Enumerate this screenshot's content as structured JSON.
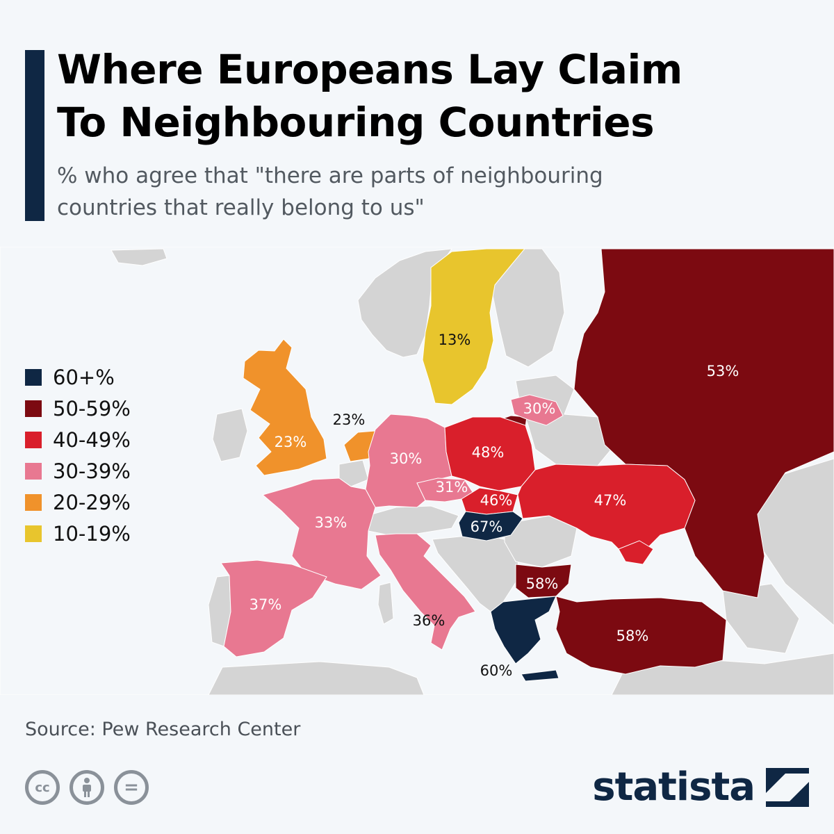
{
  "header": {
    "title_line1": "Where Europeans Lay Claim",
    "title_line2": "To Neighbouring Countries",
    "subtitle_line1": "% who agree that \"there are parts of neighbouring",
    "subtitle_line2": "countries that really belong to us\""
  },
  "colors": {
    "band_60_plus": "#0f2744",
    "band_50_59": "#7c0a11",
    "band_40_49": "#d91f2b",
    "band_30_39": "#e87891",
    "band_20_29": "#f0922b",
    "band_10_19": "#e8c52d",
    "no_data": "#d4d4d4",
    "sea": "#f4f7fa"
  },
  "legend": {
    "items": [
      {
        "label": "60+%",
        "color": "#0f2744"
      },
      {
        "label": "50-59%",
        "color": "#7c0a11"
      },
      {
        "label": "40-49%",
        "color": "#d91f2b"
      },
      {
        "label": "30-39%",
        "color": "#e87891"
      },
      {
        "label": "20-29%",
        "color": "#f0922b"
      },
      {
        "label": "10-19%",
        "color": "#e8c52d"
      }
    ]
  },
  "map_values": {
    "sweden": "13%",
    "russia": "53%",
    "lithuania": "30%",
    "uk": "23%",
    "netherlands": "23%",
    "germany": "30%",
    "poland": "48%",
    "czechia": "31%",
    "slovakia": "46%",
    "hungary": "67%",
    "ukraine": "47%",
    "france": "33%",
    "spain": "37%",
    "italy": "36%",
    "bulgaria": "58%",
    "greece": "60%",
    "turkey": "58%"
  },
  "footer": {
    "source": "Source: Pew Research Center",
    "cc_text": "cc",
    "eq_text": "=",
    "brand": "statista"
  }
}
